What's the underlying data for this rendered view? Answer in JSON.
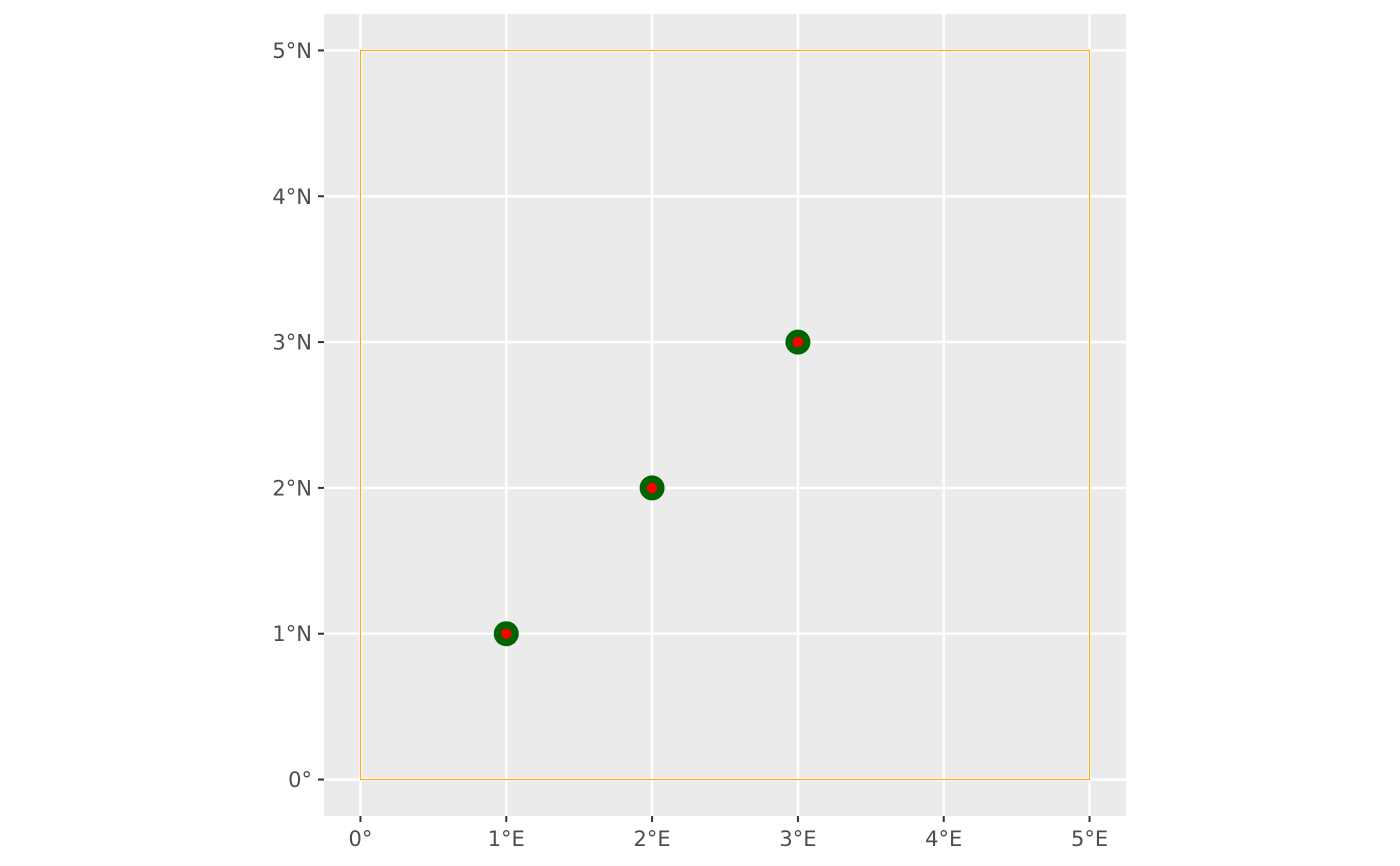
{
  "chart_data": {
    "type": "scatter",
    "title": "",
    "xlabel": "",
    "ylabel": "",
    "xlim": [
      -0.25,
      5.25
    ],
    "ylim": [
      -0.25,
      5.25
    ],
    "x_ticks": [
      {
        "value": 0,
        "label": "0°"
      },
      {
        "value": 1,
        "label": "1°E"
      },
      {
        "value": 2,
        "label": "2°E"
      },
      {
        "value": 3,
        "label": "3°E"
      },
      {
        "value": 4,
        "label": "4°E"
      },
      {
        "value": 5,
        "label": "5°E"
      }
    ],
    "y_ticks": [
      {
        "value": 0,
        "label": "0°"
      },
      {
        "value": 1,
        "label": "1°N"
      },
      {
        "value": 2,
        "label": "2°N"
      },
      {
        "value": 3,
        "label": "3°N"
      },
      {
        "value": 4,
        "label": "4°N"
      },
      {
        "value": 5,
        "label": "5°N"
      }
    ],
    "grid": true,
    "legend": "none",
    "bounding_box": {
      "x": [
        0,
        5
      ],
      "y": [
        0,
        5
      ],
      "color": "#FFA500"
    },
    "series": [
      {
        "points": [
          {
            "x": 1,
            "y": 1
          },
          {
            "x": 2,
            "y": 2
          },
          {
            "x": 3,
            "y": 3
          }
        ],
        "outer_color": "#006400",
        "inner_color": "#FF0000"
      }
    ],
    "colors": {
      "panel_background": "#EBEBEB",
      "grid": "#FFFFFF",
      "tick_text": "#4D4D4D",
      "tick_mark": "#333333"
    }
  }
}
